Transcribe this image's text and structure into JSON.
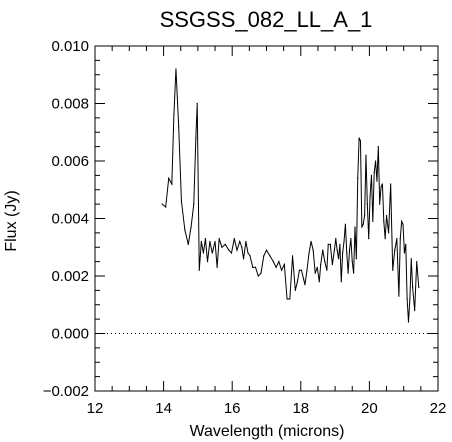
{
  "chart_data": {
    "type": "line",
    "title": "SSGSS_082_LL_A_1",
    "xlabel": "Wavelength (microns)",
    "ylabel": "Flux (Jy)",
    "xlim": [
      12,
      22
    ],
    "ylim": [
      -0.002,
      0.01
    ],
    "xticks": [
      12,
      14,
      16,
      18,
      20,
      22
    ],
    "xtick_labels": [
      "12",
      "14",
      "16",
      "18",
      "20",
      "22"
    ],
    "yticks": [
      -0.002,
      0.0,
      0.002,
      0.004,
      0.006,
      0.008,
      0.01
    ],
    "ytick_labels": [
      "−0.002",
      "0.000",
      "0.002",
      "0.004",
      "0.006",
      "0.008",
      "0.010"
    ],
    "zero_line": {
      "y": 0.0,
      "style": "dotted"
    },
    "grid": false,
    "series": [
      {
        "color": "#000000",
        "x": [
          13.96,
          14.06,
          14.15,
          14.24,
          14.3,
          14.36,
          14.44,
          14.52,
          14.62,
          14.72,
          14.8,
          14.88,
          14.94,
          14.98,
          15.04,
          15.1,
          15.16,
          15.22,
          15.28,
          15.35,
          15.42,
          15.5,
          15.56,
          15.62,
          15.7,
          15.8,
          15.9,
          15.98,
          16.06,
          16.14,
          16.22,
          16.28,
          16.33,
          16.4,
          16.46,
          16.52,
          16.6,
          16.68,
          16.76,
          16.84,
          16.92,
          17.0,
          17.1,
          17.2,
          17.28,
          17.36,
          17.44,
          17.52,
          17.6,
          17.68,
          17.76,
          17.84,
          17.9,
          17.96,
          18.02,
          18.08,
          18.12,
          18.18,
          18.24,
          18.3,
          18.36,
          18.42,
          18.48,
          18.54,
          18.58,
          18.64,
          18.7,
          18.76,
          18.8,
          18.86,
          18.92,
          18.98,
          19.02,
          19.06,
          19.1,
          19.14,
          19.18,
          19.22,
          19.26,
          19.3,
          19.34,
          19.38,
          19.42,
          19.46,
          19.5,
          19.54,
          19.58,
          19.62,
          19.66,
          19.7,
          19.74,
          19.78,
          19.82,
          19.86,
          19.9,
          19.94,
          19.98,
          20.02,
          20.06,
          20.1,
          20.14,
          20.18,
          20.22,
          20.26,
          20.3,
          20.34,
          20.38,
          20.42,
          20.46,
          20.5,
          20.56,
          20.62,
          20.68,
          20.74,
          20.8,
          20.86,
          20.9,
          20.94,
          20.98,
          21.02,
          21.06,
          21.1,
          21.14,
          21.18,
          21.22,
          21.26,
          21.32,
          21.38,
          21.44
        ],
        "values": [
          0.0045,
          0.0044,
          0.0054,
          0.0052,
          0.0076,
          0.0092,
          0.0072,
          0.0046,
          0.0036,
          0.0031,
          0.0037,
          0.0045,
          0.0068,
          0.008,
          0.0022,
          0.0032,
          0.0028,
          0.0033,
          0.0025,
          0.0032,
          0.0028,
          0.0032,
          0.0023,
          0.0033,
          0.003,
          0.0031,
          0.0029,
          0.0028,
          0.0033,
          0.0029,
          0.0032,
          0.003,
          0.0026,
          0.0032,
          0.0028,
          0.0027,
          0.0023,
          0.0023,
          0.002,
          0.0021,
          0.0027,
          0.0029,
          0.0027,
          0.0025,
          0.0023,
          0.0025,
          0.0022,
          0.0024,
          0.0012,
          0.0012,
          0.0027,
          0.0015,
          0.0018,
          0.0022,
          0.0022,
          0.0019,
          0.0017,
          0.0022,
          0.0028,
          0.0032,
          0.0029,
          0.0021,
          0.0023,
          0.0018,
          0.0024,
          0.0029,
          0.0025,
          0.0022,
          0.0031,
          0.0031,
          0.0024,
          0.0029,
          0.0033,
          0.0029,
          0.0026,
          0.0031,
          0.0018,
          0.0028,
          0.0032,
          0.0038,
          0.0028,
          0.0021,
          0.0029,
          0.0033,
          0.0025,
          0.0021,
          0.0037,
          0.0026,
          0.0054,
          0.0068,
          0.0067,
          0.0037,
          0.0038,
          0.0041,
          0.0062,
          0.0045,
          0.0033,
          0.0048,
          0.0055,
          0.0039,
          0.0056,
          0.006,
          0.0053,
          0.0065,
          0.0045,
          0.0051,
          0.0052,
          0.0039,
          0.0033,
          0.0041,
          0.0035,
          0.0052,
          0.0022,
          0.0029,
          0.0033,
          0.0013,
          0.0033,
          0.0039,
          0.0038,
          0.0028,
          0.0031,
          0.0012,
          0.0004,
          0.0012,
          0.0026,
          0.0016,
          0.0008,
          0.0025,
          0.0016
        ]
      }
    ]
  }
}
